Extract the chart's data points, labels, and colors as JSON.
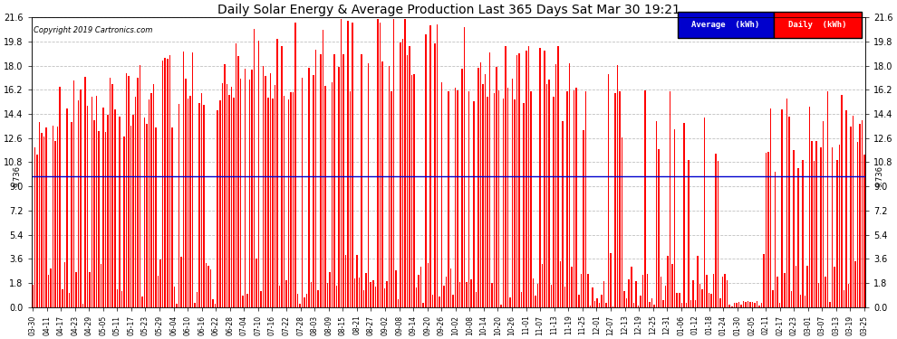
{
  "title": "Daily Solar Energy & Average Production Last 365 Days Sat Mar 30 19:21",
  "copyright": "Copyright 2019 Cartronics.com",
  "average_value": 9.736,
  "ylim": [
    0.0,
    21.6
  ],
  "yticks": [
    0.0,
    1.8,
    3.6,
    5.4,
    7.2,
    9.0,
    10.8,
    12.6,
    14.4,
    16.2,
    18.0,
    19.8,
    21.6
  ],
  "bar_color": "#ff0000",
  "average_line_color": "#0000cd",
  "background_color": "#ffffff",
  "grid_color": "#c0c0c0",
  "legend_avg_bg": "#0000cd",
  "legend_daily_bg": "#ff0000",
  "x_labels": [
    "03-30",
    "04-11",
    "04-17",
    "04-23",
    "04-29",
    "05-05",
    "05-11",
    "05-17",
    "05-23",
    "05-29",
    "06-04",
    "06-10",
    "06-16",
    "06-22",
    "06-28",
    "07-04",
    "07-10",
    "07-16",
    "07-22",
    "07-28",
    "08-03",
    "08-09",
    "08-15",
    "08-21",
    "08-27",
    "09-02",
    "09-08",
    "09-14",
    "09-20",
    "09-26",
    "10-02",
    "10-08",
    "10-14",
    "10-20",
    "10-26",
    "11-01",
    "11-07",
    "11-13",
    "11-19",
    "11-25",
    "12-01",
    "12-07",
    "12-13",
    "12-19",
    "12-25",
    "12-31",
    "01-06",
    "01-12",
    "01-18",
    "01-24",
    "01-30",
    "02-05",
    "02-11",
    "02-17",
    "02-23",
    "03-01",
    "03-07",
    "03-13",
    "03-19",
    "03-25"
  ],
  "n_days": 365,
  "fig_width": 9.9,
  "fig_height": 3.75,
  "dpi": 100
}
